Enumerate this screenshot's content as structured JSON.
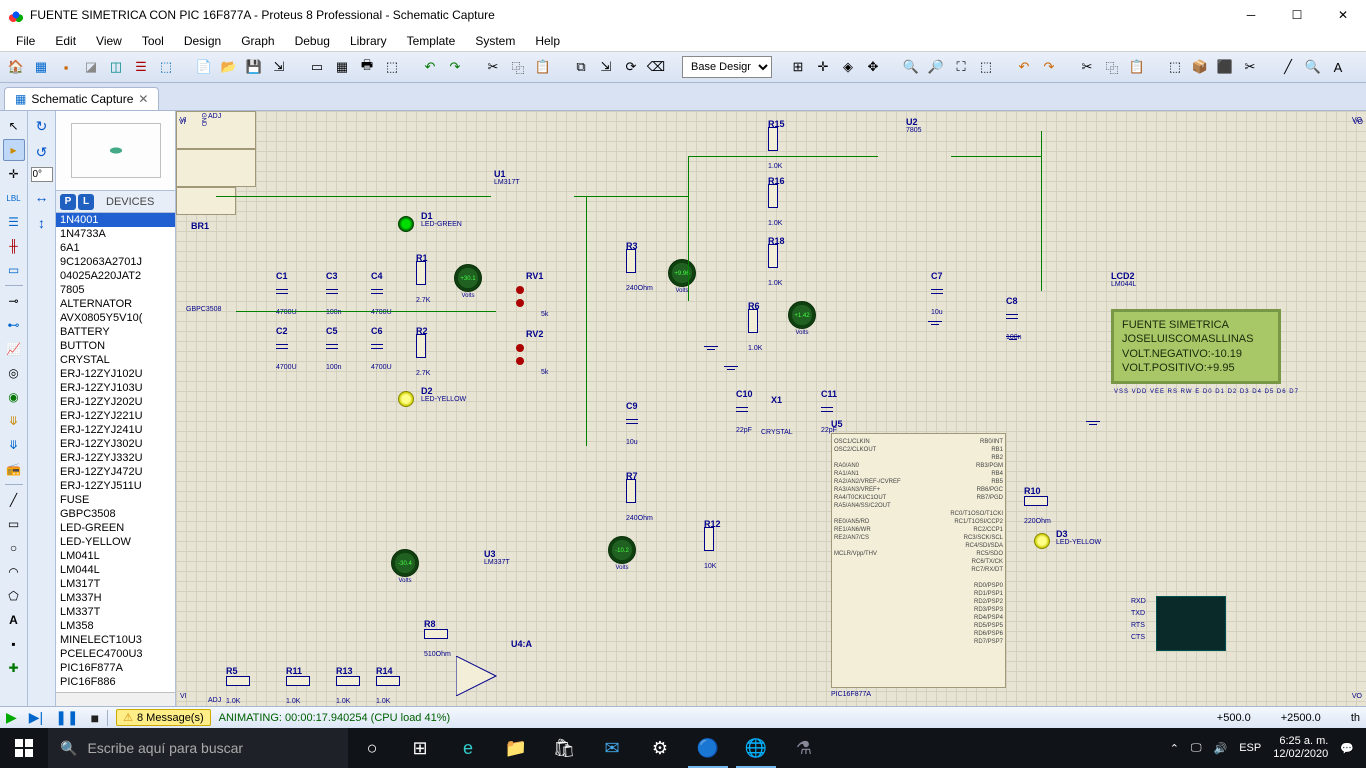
{
  "window": {
    "title": "FUENTE SIMETRICA CON PIC 16F877A - Proteus 8 Professional - Schematic Capture"
  },
  "menu": [
    "File",
    "Edit",
    "View",
    "Tool",
    "Design",
    "Graph",
    "Debug",
    "Library",
    "Template",
    "System",
    "Help"
  ],
  "design_selector": "Base Design",
  "tab": {
    "label": "Schematic Capture"
  },
  "rotation": "0°",
  "devices_header": "DEVICES",
  "devices": [
    "1N4001",
    "1N4733A",
    "6A1",
    "9C12063A2701J",
    "04025A220JAT2",
    "7805",
    "ALTERNATOR",
    "AVX0805Y5V10(",
    "BATTERY",
    "BUTTON",
    "CRYSTAL",
    "ERJ-12ZYJ102U",
    "ERJ-12ZYJ103U",
    "ERJ-12ZYJ202U",
    "ERJ-12ZYJ221U",
    "ERJ-12ZYJ241U",
    "ERJ-12ZYJ302U",
    "ERJ-12ZYJ332U",
    "ERJ-12ZYJ472U",
    "ERJ-12ZYJ511U",
    "FUSE",
    "GBPC3508",
    "LED-GREEN",
    "LED-YELLOW",
    "LM041L",
    "LM044L",
    "LM317T",
    "LM337H",
    "LM337T",
    "LM358",
    "MINELECT10U3",
    "PCELEC4700U3",
    "PIC16F877A",
    "PIC16F886"
  ],
  "selected_device": "1N4001",
  "schematic": {
    "br1": {
      "ref": "BR1",
      "val": "GBPC3508"
    },
    "u1": {
      "ref": "U1",
      "val": "LM317T",
      "pins": "VI  VO / ADJ"
    },
    "u2": {
      "ref": "U2",
      "val": "7805",
      "pins": "VI  GND  VO"
    },
    "u3": {
      "ref": "U3",
      "val": "LM337T",
      "pins": "ADJ / VI  VO"
    },
    "u4": {
      "ref": "U4:A"
    },
    "u5": {
      "ref": "U5",
      "val": "PIC16F877A"
    },
    "d1": {
      "ref": "D1",
      "val": "LED-GREEN"
    },
    "d2": {
      "ref": "D2",
      "val": "LED-YELLOW"
    },
    "d3": {
      "ref": "D3",
      "val": "LED-YELLOW"
    },
    "c1": {
      "ref": "C1",
      "val": "4700U"
    },
    "c2": {
      "ref": "C2",
      "val": "4700U"
    },
    "c3": {
      "ref": "C3",
      "val": "100n"
    },
    "c4": {
      "ref": "C4",
      "val": "4700U"
    },
    "c5": {
      "ref": "C5",
      "val": "100n"
    },
    "c6": {
      "ref": "C6",
      "val": "4700U"
    },
    "c7": {
      "ref": "C7",
      "val": "10u"
    },
    "c8": {
      "ref": "C8",
      "val": "100n"
    },
    "c9": {
      "ref": "C9",
      "val": "10u"
    },
    "c10": {
      "ref": "C10",
      "val": "22pF"
    },
    "c11": {
      "ref": "C11",
      "val": "22pF"
    },
    "r1": {
      "ref": "R1",
      "val": "2.7K"
    },
    "r2": {
      "ref": "R2",
      "val": "2.7K"
    },
    "r3": {
      "ref": "R3",
      "val": "240Ohm"
    },
    "r5": {
      "ref": "R5",
      "val": "1.0K"
    },
    "r6": {
      "ref": "R6",
      "val": "1.0K"
    },
    "r7": {
      "ref": "R7",
      "val": "240Ohm"
    },
    "r8": {
      "ref": "R8",
      "val": "510Ohm"
    },
    "r10": {
      "ref": "R10",
      "val": "220Ohm"
    },
    "r11": {
      "ref": "R11",
      "val": "1.0K"
    },
    "r12": {
      "ref": "R12",
      "val": "10K"
    },
    "r13": {
      "ref": "R13",
      "val": "1.0K"
    },
    "r14": {
      "ref": "R14",
      "val": "1.0K"
    },
    "r15": {
      "ref": "R15",
      "val": "1.0K"
    },
    "r16": {
      "ref": "R16",
      "val": "1.0K"
    },
    "r18": {
      "ref": "R18",
      "val": "1.0K"
    },
    "rv1": "RV1",
    "rv2": "RV2",
    "rv1_val": "5k",
    "rv2_val": "5k",
    "x1": {
      "ref": "X1",
      "val": "CRYSTAL"
    },
    "lcd2": {
      "ref": "LCD2",
      "val": "LM044L"
    },
    "meters": {
      "m1": "+30.1",
      "m2": "+9.96",
      "m3": "+1.42",
      "m4": "-30.4",
      "m5": "-10.2",
      "unit": "Volts"
    }
  },
  "lcd": {
    "line1": "  FUENTE SIMETRICA  ",
    "line2": " JOSELUISCOMASLLINAS",
    "line3": "VOLT.NEGATIVO:-10.19",
    "line4": "VOLT.POSITIVO:+9.95 "
  },
  "lcd_pins": "VSS VDD VEE RS RW E D0 D1 D2 D3 D4 D5 D6 D7",
  "terminal": {
    "labels": [
      "RXD",
      "TXD",
      "RTS",
      "CTS"
    ]
  },
  "mcu_pins_left": "OSC1/CLKIN\nOSC2/CLKOUT\n\nRA0/AN0\nRA1/AN1\nRA2/AN2/VREF-/CVREF\nRA3/AN3/VREF+\nRA4/T0CKI/C1OUT\nRA5/AN4/SS/C2OUT\n\nRE0/AN5/RD\nRE1/AN6/WR\nRE2/AN7/CS\n\nMCLR/Vpp/THV",
  "mcu_pins_right": "RB0/INT\nRB1\nRB2\nRB3/PGM\nRB4\nRB5\nRB6/PGC\nRB7/PGD\n\nRC0/T1OSO/T1CKI\nRC1/T1OSI/CCP2\nRC2/CCP1\nRC3/SCK/SCL\nRC4/SDI/SDA\nRC5/SDO\nRC6/TX/CK\nRC7/RX/DT\n\nRD0/PSP0\nRD1/PSP1\nRD2/PSP2\nRD3/PSP3\nRD4/PSP4\nRD5/PSP5\nRD6/PSP6\nRD7/PSP7",
  "status": {
    "messages": "8 Message(s)",
    "animating": "ANIMATING: 00:00:17.940254 (CPU load 41%)",
    "coord1": "+500.0",
    "coord2": "+2500.0",
    "th": "th"
  },
  "taskbar": {
    "search_placeholder": "Escribe aquí para buscar",
    "lang": "ESP",
    "time": "6:25 a. m.",
    "date": "12/02/2020"
  }
}
